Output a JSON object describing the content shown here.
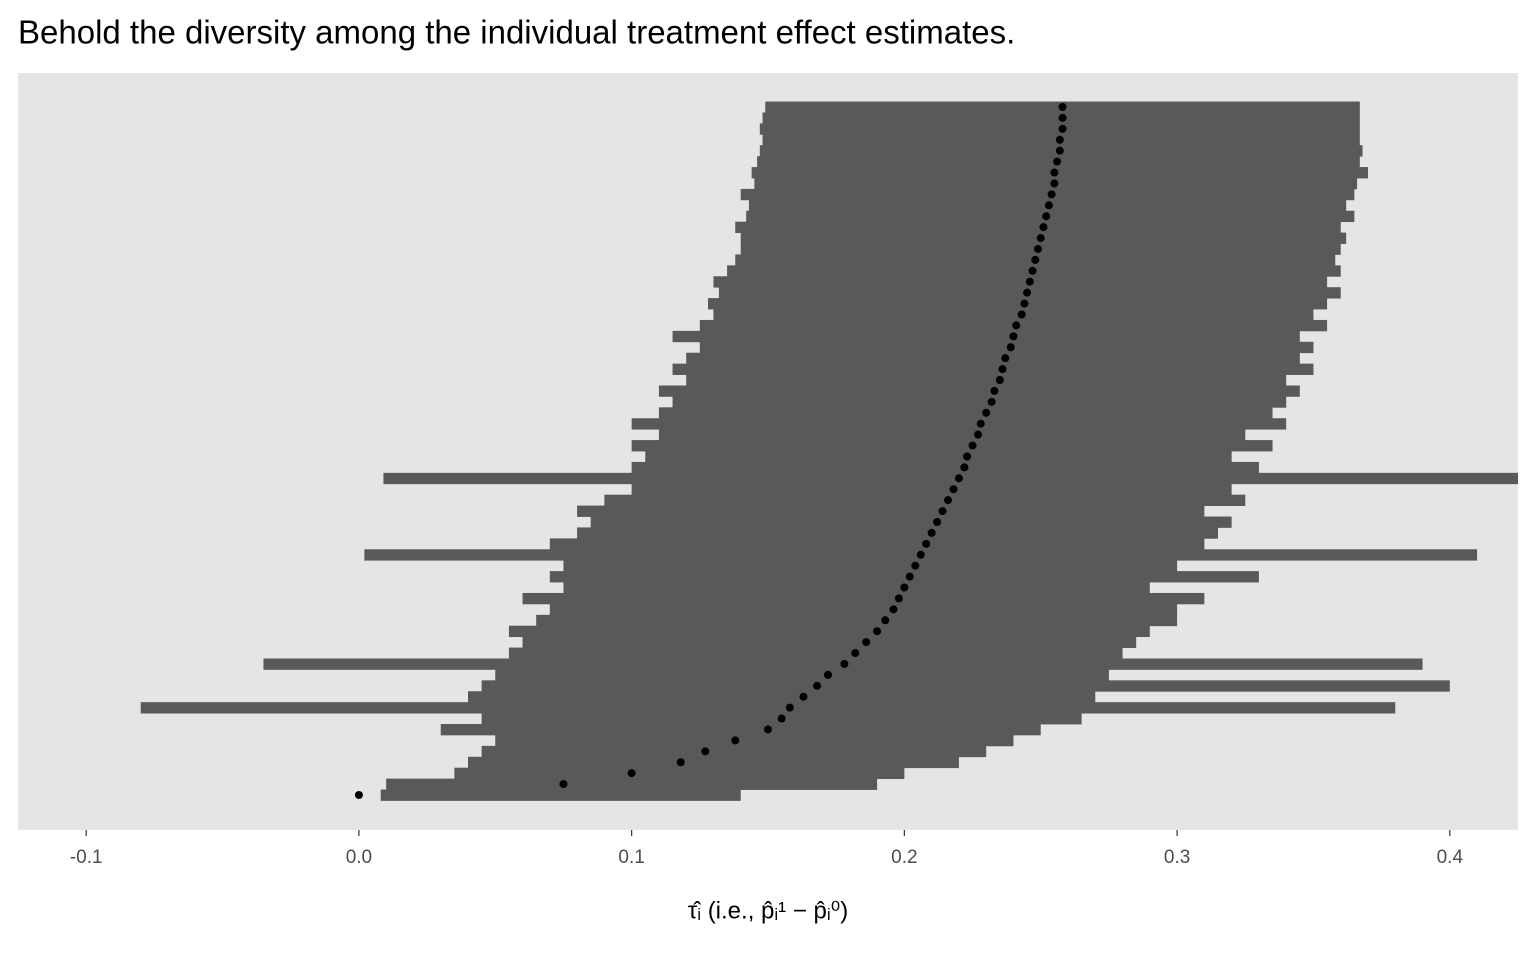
{
  "chart_data": {
    "type": "interval",
    "title": "Behold the diversity among the individual treatment effect estimates.",
    "xlabel": "τ̂ᵢ (i.e., p̂ᵢ¹ − p̂ᵢ⁰)",
    "values": [
      0.0,
      0.075,
      0.1,
      0.118,
      0.127,
      0.138,
      0.15,
      0.155,
      0.158,
      0.163,
      0.168,
      0.172,
      0.178,
      0.182,
      0.186,
      0.19,
      0.193,
      0.196,
      0.198,
      0.2,
      0.202,
      0.204,
      0.206,
      0.208,
      0.21,
      0.212,
      0.214,
      0.216,
      0.218,
      0.22,
      0.222,
      0.223,
      0.225,
      0.227,
      0.228,
      0.23,
      0.232,
      0.233,
      0.235,
      0.236,
      0.237,
      0.239,
      0.24,
      0.241,
      0.243,
      0.244,
      0.245,
      0.246,
      0.247,
      0.248,
      0.249,
      0.25,
      0.251,
      0.252,
      0.253,
      0.254,
      0.255,
      0.255,
      0.256,
      0.257,
      0.257,
      0.258,
      0.258,
      0.258
    ],
    "lower": [
      0.008,
      0.01,
      0.035,
      0.04,
      0.045,
      0.05,
      0.03,
      0.045,
      -0.08,
      0.04,
      0.045,
      0.05,
      -0.035,
      0.055,
      0.06,
      0.055,
      0.065,
      0.07,
      0.06,
      0.075,
      0.07,
      0.075,
      0.002,
      0.07,
      0.08,
      0.085,
      0.08,
      0.09,
      0.1,
      0.009,
      0.1,
      0.105,
      0.1,
      0.11,
      0.1,
      0.11,
      0.115,
      0.11,
      0.12,
      0.115,
      0.12,
      0.125,
      0.115,
      0.125,
      0.13,
      0.128,
      0.132,
      0.13,
      0.135,
      0.138,
      0.14,
      0.14,
      0.138,
      0.142,
      0.143,
      0.14,
      0.145,
      0.144,
      0.146,
      0.147,
      0.148,
      0.147,
      0.148,
      0.149
    ],
    "upper": [
      0.14,
      0.19,
      0.2,
      0.22,
      0.23,
      0.24,
      0.25,
      0.265,
      0.38,
      0.27,
      0.4,
      0.275,
      0.39,
      0.28,
      0.285,
      0.29,
      0.3,
      0.3,
      0.31,
      0.29,
      0.33,
      0.3,
      0.41,
      0.31,
      0.315,
      0.32,
      0.31,
      0.325,
      0.32,
      0.425,
      0.33,
      0.32,
      0.335,
      0.325,
      0.34,
      0.335,
      0.34,
      0.345,
      0.34,
      0.35,
      0.345,
      0.35,
      0.345,
      0.355,
      0.35,
      0.355,
      0.36,
      0.355,
      0.36,
      0.358,
      0.36,
      0.362,
      0.36,
      0.365,
      0.362,
      0.365,
      0.366,
      0.37,
      0.367,
      0.368,
      0.367,
      0.367,
      0.367,
      0.367
    ],
    "interval_color": "#595959",
    "point_color": "#000000",
    "xlim": [
      -0.125,
      0.425
    ],
    "xticks": [
      -0.1,
      {
        "value": 0,
        "label": "0.0"
      },
      0.1,
      0.2,
      0.3,
      0.4
    ],
    "grid": false
  }
}
